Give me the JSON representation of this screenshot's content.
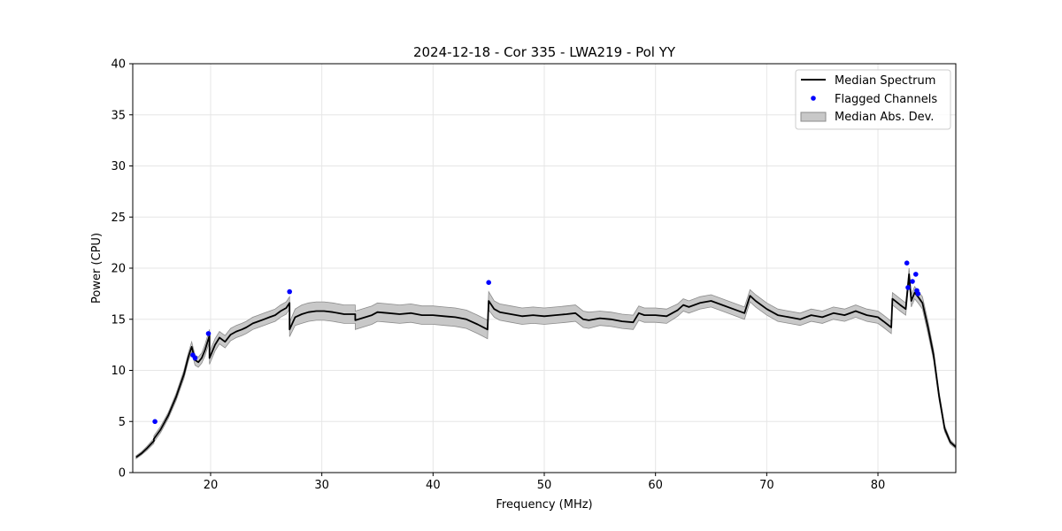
{
  "chart_data": {
    "type": "line",
    "title": "2024-12-18 - Cor 335 - LWA219 - Pol YY",
    "xlabel": "Frequency (MHz)",
    "ylabel": "Power (CPU)",
    "xlim": [
      13,
      87
    ],
    "ylim": [
      0,
      40
    ],
    "xticks": [
      20,
      30,
      40,
      50,
      60,
      70,
      80
    ],
    "yticks": [
      0,
      5,
      10,
      15,
      20,
      25,
      30,
      35,
      40
    ],
    "grid": true,
    "legend_position": "top-right",
    "legend": [
      "Median Spectrum",
      "Flagged Channels",
      "Median Abs. Dev."
    ],
    "colors": {
      "median": "#000000",
      "flagged": "#0000ff",
      "mad_fill": "#c8c8c8",
      "mad_edge": "#8c8c8c",
      "grid": "#e6e6e6"
    },
    "series": [
      {
        "name": "Median Spectrum",
        "x": [
          13.3,
          13.8,
          14.3,
          14.9,
          14.9,
          15.5,
          16.2,
          16.9,
          17.6,
          18.0,
          18.3,
          18.6,
          18.9,
          19.2,
          19.5,
          19.9,
          19.9,
          20.4,
          20.8,
          21.3,
          21.8,
          22.3,
          22.8,
          23.2,
          23.8,
          24.3,
          24.8,
          25.3,
          25.8,
          26.3,
          26.8,
          27.1,
          27.1,
          27.6,
          28.2,
          28.8,
          29.5,
          30.2,
          31.0,
          32.0,
          33.0,
          33.0,
          34.5,
          35.0,
          36.0,
          37.0,
          38.0,
          39.0,
          40.0,
          41.0,
          42.0,
          43.0,
          44.0,
          44.9,
          45.0,
          45.5,
          46.0,
          47.0,
          48.0,
          49.0,
          50.0,
          51.0,
          52.0,
          52.8,
          53.5,
          54.0,
          55.0,
          56.0,
          57.0,
          58.0,
          58.5,
          59.0,
          60.0,
          61.0,
          62.0,
          62.5,
          63.0,
          64.0,
          65.0,
          66.0,
          67.0,
          68.0,
          68.5,
          69.0,
          70.0,
          71.0,
          72.0,
          73.0,
          74.0,
          75.0,
          76.0,
          77.0,
          78.0,
          79.0,
          80.0,
          80.5,
          81.2,
          81.3,
          82.0,
          82.5,
          82.8,
          83.0,
          83.3,
          83.6,
          84.0,
          84.5,
          85.0,
          85.5,
          86.0,
          86.5,
          87.0
        ],
        "values": [
          1.5,
          1.9,
          2.4,
          3.1,
          3.3,
          4.2,
          5.6,
          7.4,
          9.6,
          11.3,
          12.3,
          11.0,
          10.8,
          11.2,
          12.0,
          13.4,
          11.2,
          12.5,
          13.2,
          12.8,
          13.5,
          13.8,
          14.0,
          14.2,
          14.6,
          14.8,
          15.0,
          15.2,
          15.4,
          15.8,
          16.1,
          16.6,
          14.0,
          15.2,
          15.5,
          15.7,
          15.8,
          15.8,
          15.7,
          15.5,
          15.5,
          14.9,
          15.4,
          15.7,
          15.6,
          15.5,
          15.6,
          15.4,
          15.4,
          15.3,
          15.2,
          15.0,
          14.5,
          14.0,
          16.8,
          16.0,
          15.7,
          15.5,
          15.3,
          15.4,
          15.3,
          15.4,
          15.5,
          15.6,
          15.0,
          14.9,
          15.1,
          15.0,
          14.8,
          14.7,
          15.6,
          15.4,
          15.4,
          15.3,
          15.9,
          16.4,
          16.2,
          16.6,
          16.8,
          16.4,
          16.0,
          15.6,
          17.3,
          16.8,
          16.0,
          15.4,
          15.2,
          15.0,
          15.4,
          15.2,
          15.6,
          15.4,
          15.8,
          15.4,
          15.2,
          14.8,
          14.2,
          17.0,
          16.4,
          16.0,
          19.4,
          16.8,
          17.6,
          17.2,
          16.6,
          14.2,
          11.5,
          7.5,
          4.3,
          3.0,
          2.5
        ],
        "spread": [
          0.15,
          0.15,
          0.2,
          0.25,
          0.3,
          0.3,
          0.3,
          0.35,
          0.4,
          0.4,
          0.5,
          0.5,
          0.5,
          0.5,
          0.55,
          0.6,
          0.6,
          0.6,
          0.6,
          0.6,
          0.6,
          0.6,
          0.6,
          0.6,
          0.6,
          0.6,
          0.6,
          0.6,
          0.6,
          0.6,
          0.6,
          0.6,
          0.7,
          0.8,
          0.9,
          0.9,
          0.9,
          0.9,
          0.9,
          0.9,
          0.9,
          0.9,
          0.9,
          0.9,
          0.9,
          0.9,
          0.9,
          0.9,
          0.9,
          0.9,
          0.9,
          0.9,
          0.9,
          0.9,
          0.9,
          0.8,
          0.8,
          0.8,
          0.8,
          0.8,
          0.8,
          0.8,
          0.8,
          0.8,
          0.8,
          0.8,
          0.7,
          0.7,
          0.7,
          0.7,
          0.7,
          0.7,
          0.7,
          0.7,
          0.6,
          0.6,
          0.6,
          0.6,
          0.6,
          0.6,
          0.6,
          0.6,
          0.6,
          0.6,
          0.6,
          0.6,
          0.6,
          0.6,
          0.6,
          0.6,
          0.6,
          0.6,
          0.6,
          0.6,
          0.6,
          0.6,
          0.6,
          0.6,
          0.6,
          0.6,
          0.6,
          0.6,
          0.6,
          0.6,
          0.6,
          0.6,
          0.5,
          0.4,
          0.3,
          0.2,
          0.15
        ]
      },
      {
        "name": "Flagged Channels",
        "points": [
          [
            15.0,
            5.0
          ],
          [
            18.4,
            11.5
          ],
          [
            18.6,
            11.2
          ],
          [
            19.8,
            13.6
          ],
          [
            27.1,
            17.7
          ],
          [
            45.0,
            18.6
          ],
          [
            82.6,
            20.5
          ],
          [
            82.7,
            18.1
          ],
          [
            83.1,
            18.7
          ],
          [
            83.4,
            19.4
          ],
          [
            83.5,
            17.8
          ],
          [
            83.6,
            17.5
          ]
        ]
      }
    ]
  }
}
